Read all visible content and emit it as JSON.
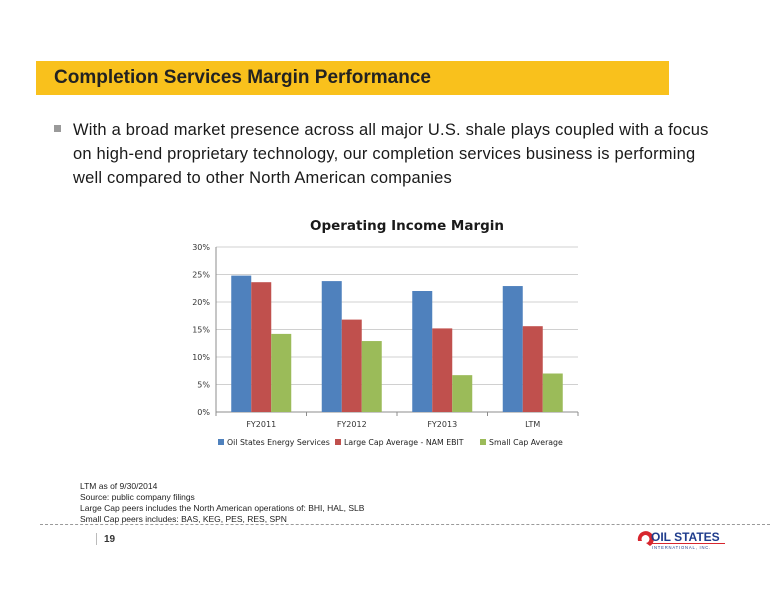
{
  "header": {
    "title": "Completion Services Margin Performance"
  },
  "bullet": {
    "text": "With a broad market presence across all major U.S. shale plays coupled with a focus on high-end proprietary technology, our completion services business is performing well compared to other North American companies"
  },
  "chart_data": {
    "type": "bar",
    "title": "Operating Income Margin",
    "categories": [
      "FY2011",
      "FY2012",
      "FY2013",
      "LTM"
    ],
    "series": [
      {
        "name": "Oil States Energy Services",
        "color": "#4F81BD",
        "values": [
          24.8,
          23.8,
          22.0,
          22.9
        ]
      },
      {
        "name": "Large Cap Average - NAM EBIT",
        "color": "#C0504D",
        "values": [
          23.6,
          16.8,
          15.2,
          15.6
        ]
      },
      {
        "name": "Small Cap Average",
        "color": "#9BBB59",
        "values": [
          14.2,
          12.9,
          6.7,
          7.0
        ]
      }
    ],
    "ylim": [
      0,
      30
    ],
    "yticks": [
      "0%",
      "5%",
      "10%",
      "15%",
      "20%",
      "25%",
      "30%"
    ],
    "grid": true,
    "legend": "bottom"
  },
  "footnotes": {
    "ltm": "LTM as of 9/30/2014",
    "source": "Source: public company filings",
    "large_cap": "Large Cap peers includes the North American operations of: BHI, HAL, SLB",
    "small_cap": "Small Cap peers includes: BAS, KEG, PES, RES, SPN"
  },
  "footer": {
    "page_number": "19",
    "logo_text": "OIL STATES",
    "logo_subtext": "INTERNATIONAL, INC."
  },
  "colors": {
    "title_bar": "#F9C11C",
    "logo_blue": "#1F3C8C",
    "logo_red": "#D7262E"
  }
}
